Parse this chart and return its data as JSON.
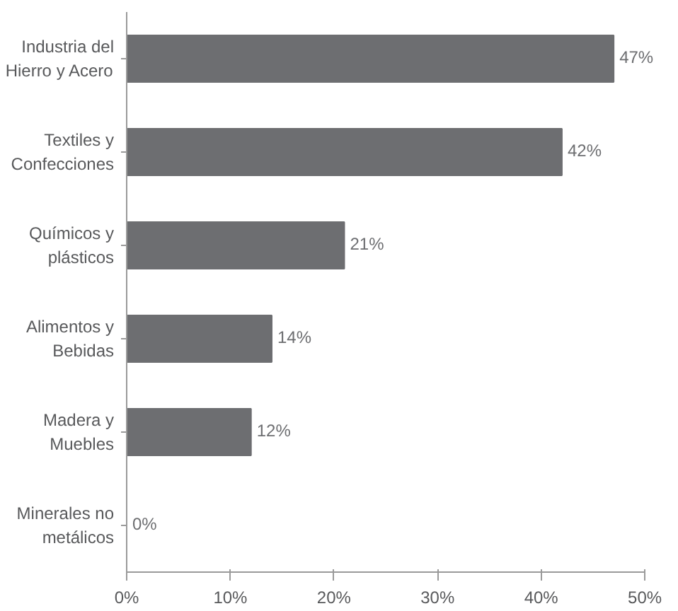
{
  "chart_data": {
    "type": "bar",
    "orientation": "horizontal",
    "categories": [
      "Industria del\nHierro y Acero",
      "Textiles y\nConfecciones",
      "Químicos y\nplásticos",
      "Alimentos y\nBebidas",
      "Madera y\nMuebles",
      "Minerales no\nmetálicos"
    ],
    "values": [
      47,
      42,
      21,
      14,
      12,
      0
    ],
    "value_labels": [
      "47%",
      "42%",
      "21%",
      "14%",
      "12%",
      "0%"
    ],
    "color": "#6d6e71",
    "xlim": [
      0,
      50
    ],
    "xticks": [
      {
        "value": 0,
        "label": "0%"
      },
      {
        "value": 10,
        "label": "10%"
      },
      {
        "value": 20,
        "label": "20%"
      },
      {
        "value": 30,
        "label": "30%"
      },
      {
        "value": 40,
        "label": "40%"
      },
      {
        "value": 50,
        "label": "50%"
      }
    ],
    "grid": false
  }
}
